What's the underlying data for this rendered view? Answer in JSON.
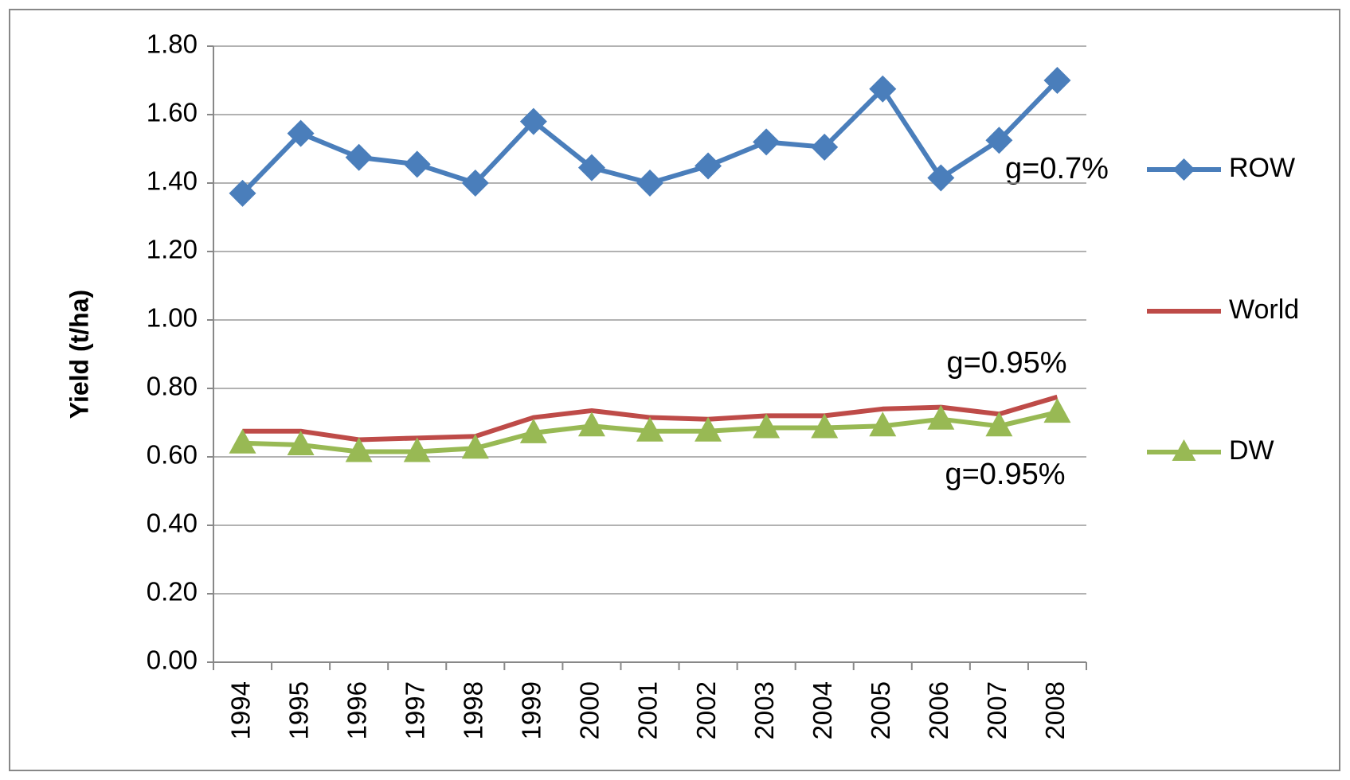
{
  "chart_data": {
    "type": "line",
    "y_label": "Yield (t/ha)",
    "categories": [
      "1994",
      "1995",
      "1996",
      "1997",
      "1998",
      "1999",
      "2000",
      "2001",
      "2002",
      "2003",
      "2004",
      "2005",
      "2006",
      "2007",
      "2008"
    ],
    "series": [
      {
        "name": "ROW",
        "color": "#4a7ebb",
        "marker": "diamond",
        "values": [
          1.37,
          1.545,
          1.475,
          1.455,
          1.4,
          1.58,
          1.445,
          1.4,
          1.45,
          1.52,
          1.505,
          1.675,
          1.415,
          1.525,
          1.7
        ]
      },
      {
        "name": "World",
        "color": "#be4b48",
        "marker": "none",
        "values": [
          0.675,
          0.675,
          0.65,
          0.655,
          0.66,
          0.715,
          0.735,
          0.715,
          0.71,
          0.72,
          0.72,
          0.74,
          0.745,
          0.725,
          0.775
        ]
      },
      {
        "name": "DW",
        "color": "#98b954",
        "marker": "triangle",
        "values": [
          0.64,
          0.635,
          0.615,
          0.615,
          0.625,
          0.67,
          0.69,
          0.675,
          0.675,
          0.685,
          0.685,
          0.69,
          0.71,
          0.69,
          0.73
        ]
      }
    ],
    "annotations": [
      "g=0.7%",
      "g=0.95%",
      "g=0.95%"
    ],
    "ylim": [
      0,
      1.8
    ],
    "yticks": [
      {
        "value": 0,
        "label": "0.00"
      },
      {
        "value": 0.2,
        "label": "0.20"
      },
      {
        "value": 0.4,
        "label": "0.40"
      },
      {
        "value": 0.6,
        "label": "0.60"
      },
      {
        "value": 0.8,
        "label": "0.80"
      },
      {
        "value": 1.0,
        "label": "1.00"
      },
      {
        "value": 1.2,
        "label": "1.20"
      },
      {
        "value": 1.4,
        "label": "1.40"
      },
      {
        "value": 1.6,
        "label": "1.60"
      },
      {
        "value": 1.8,
        "label": "1.80"
      }
    ],
    "grid": true,
    "legend": "right"
  }
}
